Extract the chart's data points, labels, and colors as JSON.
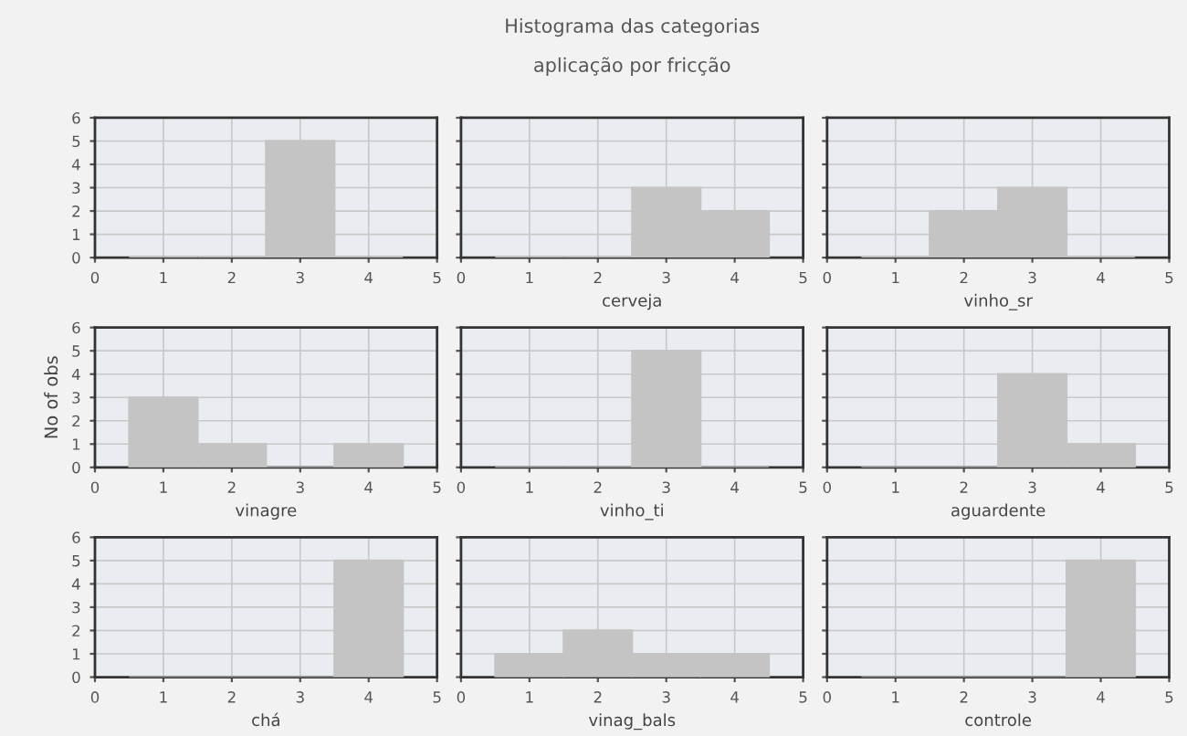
{
  "chart_data": [
    {
      "type": "histogram",
      "bins": [
        0.5,
        1.5,
        2.5,
        3.5,
        4.5
      ],
      "values": [
        0,
        0,
        5,
        0
      ],
      "color": "#c4c4c4",
      "xlim": [
        0,
        5
      ],
      "xticks": [
        0,
        1,
        2,
        3,
        4,
        5
      ],
      "ylim": [
        0,
        6
      ],
      "yticks": [
        0,
        1,
        2,
        3,
        4,
        5,
        6
      ],
      "grid": true
    },
    {
      "type": "histogram",
      "title": "Histograma das categorias",
      "subtitle": "aplicação por fricção",
      "xlabel": "cerveja",
      "bins": [
        0.5,
        1.5,
        2.5,
        3.5,
        4.5
      ],
      "values": [
        0,
        0,
        3,
        2
      ],
      "color": "#c4c4c4",
      "xlim": [
        0,
        5
      ],
      "xticks": [
        0,
        1,
        2,
        3,
        4,
        5
      ],
      "ylim": [
        0,
        6
      ],
      "yticks": [
        0,
        1,
        2,
        3,
        4,
        5,
        6
      ],
      "grid": true,
      "tick_labels": "x"
    },
    {
      "type": "histogram",
      "xlabel": "vinho_sr",
      "bins": [
        0.5,
        1.5,
        2.5,
        3.5,
        4.5
      ],
      "values": [
        0,
        2,
        3,
        0
      ],
      "color": "#c4c4c4",
      "xlim": [
        0,
        5
      ],
      "xticks": [
        0,
        1,
        2,
        3,
        4,
        5
      ],
      "ylim": [
        0,
        6
      ],
      "yticks": [
        0,
        1,
        2,
        3,
        4,
        5,
        6
      ],
      "grid": true,
      "tick_labels": "x"
    },
    {
      "type": "histogram",
      "xlabel": "vinagre",
      "ylabel": "No of obs",
      "bins": [
        0.5,
        1.5,
        2.5,
        3.5,
        4.5
      ],
      "values": [
        3,
        1,
        0,
        1
      ],
      "color": "#c4c4c4",
      "xlim": [
        0,
        5
      ],
      "xticks": [
        0,
        1,
        2,
        3,
        4,
        5
      ],
      "ylim": [
        0,
        6
      ],
      "yticks": [
        0,
        1,
        2,
        3,
        4,
        5,
        6
      ],
      "grid": true
    },
    {
      "type": "histogram",
      "xlabel": "vinho_ti",
      "bins": [
        0.5,
        1.5,
        2.5,
        3.5,
        4.5
      ],
      "values": [
        0,
        0,
        5,
        0
      ],
      "color": "#c4c4c4",
      "xlim": [
        0,
        5
      ],
      "xticks": [
        0,
        1,
        2,
        3,
        4,
        5
      ],
      "ylim": [
        0,
        6
      ],
      "yticks": [
        0,
        1,
        2,
        3,
        4,
        5,
        6
      ],
      "grid": true,
      "tick_labels": "x"
    },
    {
      "type": "histogram",
      "xlabel": "aguardente",
      "bins": [
        0.5,
        1.5,
        2.5,
        3.5,
        4.5
      ],
      "values": [
        0,
        0,
        4,
        1
      ],
      "color": "#c4c4c4",
      "xlim": [
        0,
        5
      ],
      "xticks": [
        0,
        1,
        2,
        3,
        4,
        5
      ],
      "ylim": [
        0,
        6
      ],
      "yticks": [
        0,
        1,
        2,
        3,
        4,
        5,
        6
      ],
      "grid": true,
      "tick_labels": "x"
    },
    {
      "type": "histogram",
      "xlabel": "chá",
      "bins": [
        0.5,
        1.5,
        2.5,
        3.5,
        4.5
      ],
      "values": [
        0,
        0,
        0,
        5
      ],
      "color": "#c4c4c4",
      "xlim": [
        0,
        5
      ],
      "xticks": [
        0,
        1,
        2,
        3,
        4,
        5
      ],
      "ylim": [
        0,
        6
      ],
      "yticks": [
        0,
        1,
        2,
        3,
        4,
        5,
        6
      ],
      "grid": true
    },
    {
      "type": "histogram",
      "xlabel": "vinag_bals",
      "bins": [
        0.5,
        1.5,
        2.5,
        3.5,
        4.5
      ],
      "values": [
        1,
        2,
        1,
        1
      ],
      "color": "#c4c4c4",
      "xlim": [
        0,
        5
      ],
      "xticks": [
        0,
        1,
        2,
        3,
        4,
        5
      ],
      "ylim": [
        0,
        6
      ],
      "yticks": [
        0,
        1,
        2,
        3,
        4,
        5,
        6
      ],
      "grid": true,
      "tick_labels": "x"
    },
    {
      "type": "histogram",
      "xlabel": "controle",
      "bins": [
        0.5,
        1.5,
        2.5,
        3.5,
        4.5
      ],
      "values": [
        0,
        0,
        0,
        5
      ],
      "color": "#c4c4c4",
      "xlim": [
        0,
        5
      ],
      "xticks": [
        0,
        1,
        2,
        3,
        4,
        5
      ],
      "ylim": [
        0,
        6
      ],
      "yticks": [
        0,
        1,
        2,
        3,
        4,
        5,
        6
      ],
      "grid": true,
      "tick_labels": "x"
    }
  ]
}
